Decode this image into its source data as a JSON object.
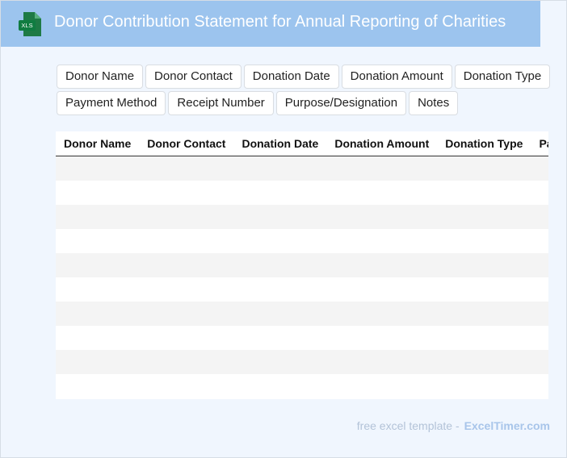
{
  "header": {
    "icon_label": "XLS",
    "title": "Donor Contribution Statement for Annual Reporting of Charities"
  },
  "tags": [
    "Donor Name",
    "Donor Contact",
    "Donation Date",
    "Donation Amount",
    "Donation Type",
    "Payment Method",
    "Receipt Number",
    "Purpose/Designation",
    "Notes"
  ],
  "table": {
    "columns": [
      "Donor Name",
      "Donor Contact",
      "Donation Date",
      "Donation Amount",
      "Donation Type",
      "Payment Method"
    ]
  },
  "footer": {
    "text": "free excel template -",
    "link": "ExcelTimer.com"
  }
}
